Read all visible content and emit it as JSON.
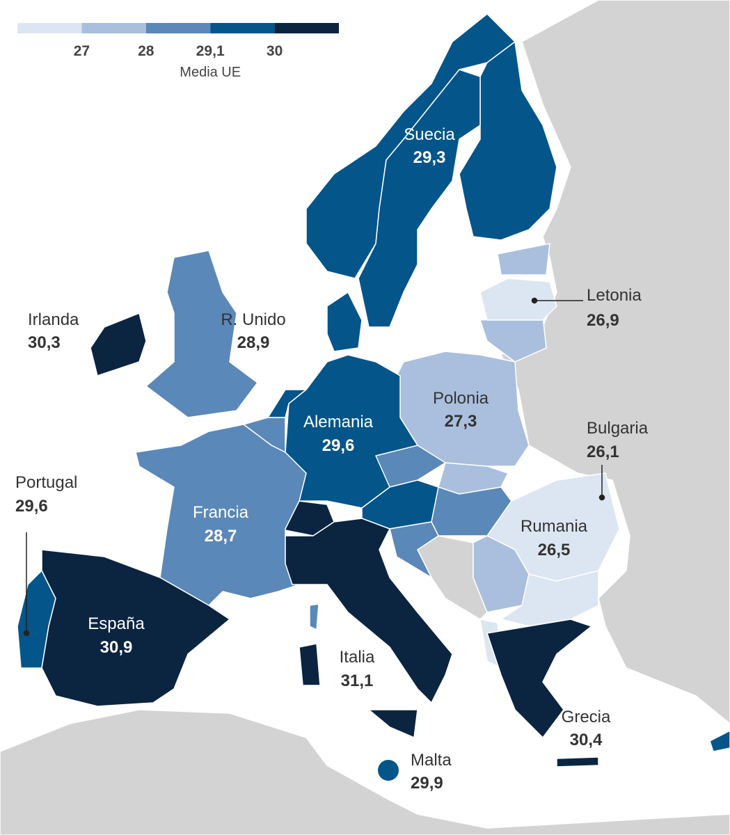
{
  "legend": {
    "ticks": [
      27,
      28,
      {
        "value": 29.1,
        "label": "29,1"
      },
      30
    ],
    "note": "Media UE",
    "colors": [
      "#dce6f2",
      "#a9bfdd",
      "#5a88b8",
      "#03558a",
      "#0b2440"
    ]
  },
  "regions": [
    {
      "name": "Suecia",
      "value": 29.3,
      "value_label": "29,3"
    },
    {
      "name": "Irlanda",
      "value": 30.3,
      "value_label": "30,3"
    },
    {
      "name": "R. Unido",
      "value": 28.9,
      "value_label": "28,9"
    },
    {
      "name": "Letonia",
      "value": 26.9,
      "value_label": "26,9"
    },
    {
      "name": "Polonia",
      "value": 27.3,
      "value_label": "27,3"
    },
    {
      "name": "Alemania",
      "value": 29.6,
      "value_label": "29,6"
    },
    {
      "name": "Bulgaria",
      "value": 26.1,
      "value_label": "26,1"
    },
    {
      "name": "Portugal",
      "value": 29.6,
      "value_label": "29,6"
    },
    {
      "name": "Francia",
      "value": 28.7,
      "value_label": "28,7"
    },
    {
      "name": "Rumania",
      "value": 26.5,
      "value_label": "26,5"
    },
    {
      "name": "España",
      "value": 30.9,
      "value_label": "30,9"
    },
    {
      "name": "Italia",
      "value": 31.1,
      "value_label": "31,1"
    },
    {
      "name": "Grecia",
      "value": 30.4,
      "value_label": "30,4"
    },
    {
      "name": "Malta",
      "value": 29.9,
      "value_label": "29,9"
    }
  ]
}
